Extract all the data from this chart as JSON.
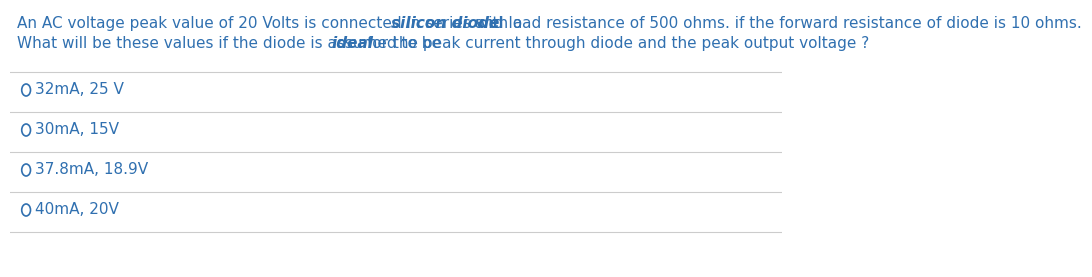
{
  "line1_parts": [
    {
      "text": "An AC voltage peak value of 20 Volts is connected in series with a ",
      "bold": false,
      "italic": false
    },
    {
      "text": "silicon diode",
      "bold": true,
      "italic": true
    },
    {
      "text": " and load resistance of 500 ohms. if the forward resistance of diode is 10 ohms.",
      "bold": false,
      "italic": false
    }
  ],
  "line2_parts": [
    {
      "text": "What will be these values if the diode is assumed to be ",
      "bold": false,
      "italic": false
    },
    {
      "text": "ideal",
      "bold": true,
      "italic": true
    },
    {
      "text": " for the peak current through diode and the peak output voltage ?",
      "bold": false,
      "italic": false
    }
  ],
  "options": [
    "32mA, 25 V",
    "30mA, 15V",
    "37.8mA, 18.9V",
    "40mA, 20V"
  ],
  "text_color": "#3070b0",
  "background_color": "#ffffff",
  "separator_color": "#cccccc",
  "circle_color": "#3070b0",
  "font_size": 11,
  "option_font_size": 11
}
